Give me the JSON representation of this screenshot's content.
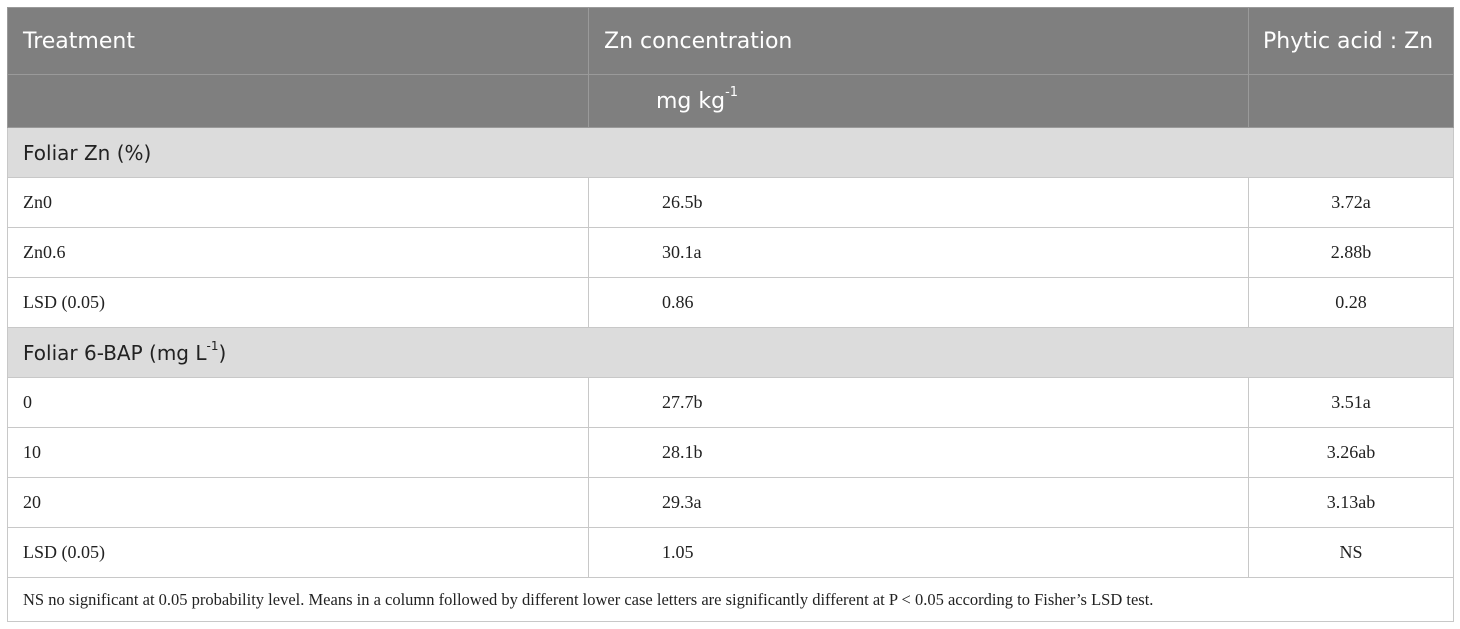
{
  "header": {
    "treatment": "Treatment",
    "zn_concentration": "Zn concentration",
    "phytic_ratio": "Phytic acid : Zn"
  },
  "units": {
    "zn_unit_base": "mg kg",
    "zn_unit_exp": "-1"
  },
  "groups": {
    "foliar_zn": {
      "label": "Foliar Zn (%)",
      "rows": [
        {
          "treatment": "Zn0",
          "zn": "26.5b",
          "ratio": "3.72a"
        },
        {
          "treatment": "Zn0.6",
          "zn": "30.1a",
          "ratio": "2.88b"
        },
        {
          "treatment": "LSD (0.05)",
          "zn": "0.86",
          "ratio": "0.28"
        }
      ]
    },
    "foliar_bap": {
      "label_base": "Foliar 6-BAP (mg L",
      "label_exp": "-1",
      "label_close": ")",
      "rows": [
        {
          "treatment": "0",
          "zn": "27.7b",
          "ratio": "3.51a"
        },
        {
          "treatment": "10",
          "zn": "28.1b",
          "ratio": "3.26ab"
        },
        {
          "treatment": "20",
          "zn": "29.3a",
          "ratio": "3.13ab"
        },
        {
          "treatment": "LSD (0.05)",
          "zn": "1.05",
          "ratio": "NS"
        }
      ]
    }
  },
  "footnote": "NS no significant at 0.05 probability level. Means in a column followed by different lower case letters are significantly different at P < 0.05 according to Fisher’s LSD test."
}
